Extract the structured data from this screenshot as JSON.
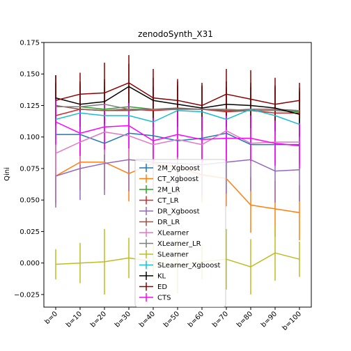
{
  "chart_data": {
    "type": "line",
    "title": "zenodoSynth_X31",
    "xlabel": "",
    "ylabel": "Qini",
    "ylim": [
      -0.035,
      0.175
    ],
    "yticks": [
      -0.025,
      0.0,
      0.025,
      0.05,
      0.075,
      0.1,
      0.125,
      0.15,
      0.175
    ],
    "ytick_labels": [
      "−0.025",
      "0.000",
      "0.025",
      "0.050",
      "0.075",
      "0.100",
      "0.125",
      "0.150",
      "0.175"
    ],
    "categories": [
      "b=0",
      "b=10",
      "b=20",
      "b=30",
      "b=40",
      "b=50",
      "b=60",
      "b=70",
      "b=80",
      "b=90",
      "b=100"
    ],
    "legend_position": "lower-center",
    "series": [
      {
        "name": "2M_Xgboost",
        "color": "#1f77b4",
        "values": [
          0.102,
          0.102,
          0.095,
          0.103,
          0.101,
          0.097,
          0.099,
          0.103,
          0.094,
          0.094,
          0.094
        ],
        "err": [
          0.015,
          0.015,
          0.015,
          0.015,
          0.015,
          0.015,
          0.015,
          0.015,
          0.015,
          0.015,
          0.015
        ]
      },
      {
        "name": "CT_Xgboost",
        "color": "#ff7f0e",
        "values": [
          0.069,
          0.08,
          0.08,
          0.071,
          0.079,
          0.076,
          0.07,
          0.067,
          0.046,
          0.043,
          0.04
        ],
        "err": [
          0.022,
          0.022,
          0.022,
          0.022,
          0.022,
          0.022,
          0.022,
          0.022,
          0.022,
          0.022,
          0.022
        ]
      },
      {
        "name": "2M_LR",
        "color": "#2ca02c",
        "values": [
          0.124,
          0.124,
          0.122,
          0.124,
          0.122,
          0.122,
          0.122,
          0.121,
          0.121,
          0.121,
          0.12
        ],
        "err": [
          0.018,
          0.018,
          0.018,
          0.018,
          0.018,
          0.018,
          0.018,
          0.018,
          0.018,
          0.018,
          0.018
        ]
      },
      {
        "name": "CT_LR",
        "color": "#d62728",
        "values": [
          0.117,
          0.122,
          0.121,
          0.122,
          0.121,
          0.122,
          0.122,
          0.12,
          0.121,
          0.119,
          0.119
        ],
        "err": [
          0.018,
          0.018,
          0.018,
          0.018,
          0.018,
          0.018,
          0.018,
          0.018,
          0.018,
          0.018,
          0.018
        ]
      },
      {
        "name": "DR_Xgboost",
        "color": "#9467bd",
        "values": [
          0.069,
          0.075,
          0.079,
          0.082,
          0.08,
          0.079,
          0.078,
          0.08,
          0.082,
          0.073,
          0.074
        ],
        "err": [
          0.025,
          0.025,
          0.025,
          0.025,
          0.025,
          0.025,
          0.025,
          0.025,
          0.025,
          0.025,
          0.025
        ]
      },
      {
        "name": "DR_LR",
        "color": "#8c564b",
        "values": [
          0.125,
          0.122,
          0.121,
          0.121,
          0.122,
          0.123,
          0.122,
          0.121,
          0.122,
          0.122,
          0.121
        ],
        "err": [
          0.018,
          0.018,
          0.018,
          0.018,
          0.018,
          0.018,
          0.018,
          0.018,
          0.018,
          0.018,
          0.018
        ]
      },
      {
        "name": "XLearner",
        "color": "#e377c2",
        "values": [
          0.087,
          0.096,
          0.104,
          0.101,
          0.094,
          0.098,
          0.094,
          0.105,
          0.095,
          0.096,
          0.096
        ],
        "err": [
          0.018,
          0.018,
          0.018,
          0.018,
          0.018,
          0.018,
          0.018,
          0.018,
          0.018,
          0.018,
          0.018
        ]
      },
      {
        "name": "XLearner_LR",
        "color": "#7f7f7f",
        "values": [
          0.124,
          0.124,
          0.126,
          0.122,
          0.122,
          0.122,
          0.122,
          0.122,
          0.121,
          0.121,
          0.121
        ],
        "err": [
          0.018,
          0.018,
          0.018,
          0.018,
          0.018,
          0.018,
          0.018,
          0.018,
          0.018,
          0.018,
          0.018
        ]
      },
      {
        "name": "SLearner",
        "color": "#bcbd22",
        "values": [
          -0.001,
          0.0,
          0.001,
          0.004,
          0.001,
          -0.002,
          0.001,
          0.003,
          -0.003,
          0.008,
          0.003
        ],
        "err": [
          0.012,
          0.016,
          0.026,
          0.016,
          0.014,
          0.022,
          0.014,
          0.024,
          0.022,
          0.022,
          0.014
        ]
      },
      {
        "name": "SLearner_Xgboost",
        "color": "#17becf",
        "values": [
          0.114,
          0.119,
          0.117,
          0.117,
          0.112,
          0.121,
          0.12,
          0.114,
          0.122,
          0.117,
          0.11
        ],
        "err": [
          0.016,
          0.016,
          0.016,
          0.016,
          0.016,
          0.016,
          0.016,
          0.016,
          0.016,
          0.016,
          0.016
        ]
      },
      {
        "name": "KL",
        "color": "#000000",
        "values": [
          0.131,
          0.126,
          0.128,
          0.14,
          0.129,
          0.126,
          0.123,
          0.126,
          0.125,
          0.123,
          0.118
        ],
        "err": [
          0.018,
          0.018,
          0.018,
          0.018,
          0.018,
          0.018,
          0.018,
          0.018,
          0.018,
          0.018,
          0.018
        ]
      },
      {
        "name": "ED",
        "color": "#8b0000",
        "values": [
          0.129,
          0.134,
          0.135,
          0.143,
          0.131,
          0.129,
          0.125,
          0.134,
          0.13,
          0.126,
          0.129
        ],
        "err": [
          0.02,
          0.017,
          0.024,
          0.022,
          0.023,
          0.017,
          0.018,
          0.02,
          0.023,
          0.021,
          0.014
        ]
      },
      {
        "name": "CTS",
        "color": "#ff00ff",
        "values": [
          0.112,
          0.103,
          0.108,
          0.109,
          0.097,
          0.102,
          0.098,
          0.099,
          0.099,
          0.095,
          0.093
        ],
        "err": [
          0.018,
          0.018,
          0.018,
          0.018,
          0.018,
          0.018,
          0.018,
          0.018,
          0.018,
          0.018,
          0.018
        ]
      }
    ]
  }
}
